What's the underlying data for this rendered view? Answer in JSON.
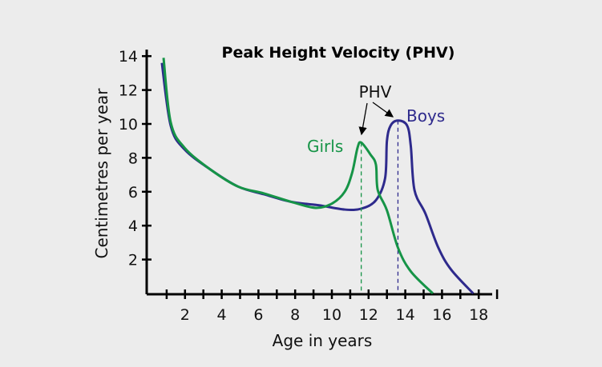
{
  "chart_data": {
    "type": "line",
    "title": "Peak Height Velocity (PHV)",
    "xlabel": "Age in years",
    "ylabel": "Centimetres per year",
    "xlim": [
      0,
      19.5
    ],
    "ylim": [
      0,
      14
    ],
    "xticks": [
      2,
      4,
      6,
      8,
      10,
      12,
      14,
      16,
      18
    ],
    "yticks": [
      2,
      4,
      6,
      8,
      10,
      12,
      14
    ],
    "grid": false,
    "annotation": "PHV",
    "series": [
      {
        "name": "Girls",
        "color": "#169447",
        "points": [
          [
            0.83,
            13.9
          ],
          [
            1.22,
            10.1
          ],
          [
            1.97,
            8.6
          ],
          [
            3.4,
            7.3
          ],
          [
            4.9,
            6.3
          ],
          [
            6.3,
            5.9
          ],
          [
            7.8,
            5.4
          ],
          [
            9.1,
            5.05
          ],
          [
            10.0,
            5.3
          ],
          [
            10.7,
            6.0
          ],
          [
            11.1,
            7.1
          ],
          [
            11.4,
            8.6
          ],
          [
            11.6,
            8.9
          ],
          [
            12.1,
            8.2
          ],
          [
            12.4,
            7.6
          ],
          [
            12.5,
            6.1
          ],
          [
            13.0,
            4.9
          ],
          [
            13.6,
            2.7
          ],
          [
            14.3,
            1.3
          ],
          [
            15.5,
            0
          ]
        ],
        "peak": [
          11.6,
          8.9
        ]
      },
      {
        "name": "Boys",
        "color": "#2e2a8c",
        "points": [
          [
            0.74,
            13.6
          ],
          [
            1.22,
            9.9
          ],
          [
            1.97,
            8.5
          ],
          [
            3.4,
            7.3
          ],
          [
            4.9,
            6.3
          ],
          [
            6.3,
            5.85
          ],
          [
            7.8,
            5.4
          ],
          [
            9.3,
            5.2
          ],
          [
            10.7,
            4.95
          ],
          [
            11.6,
            5.0
          ],
          [
            12.4,
            5.5
          ],
          [
            12.9,
            6.8
          ],
          [
            13.0,
            9.0
          ],
          [
            13.2,
            9.9
          ],
          [
            13.6,
            10.2
          ],
          [
            14.1,
            9.9
          ],
          [
            14.3,
            8.7
          ],
          [
            14.5,
            6.1
          ],
          [
            15.1,
            4.7
          ],
          [
            15.8,
            2.7
          ],
          [
            16.5,
            1.4
          ],
          [
            17.7,
            0
          ]
        ],
        "peak": [
          13.6,
          10.2
        ]
      }
    ]
  }
}
